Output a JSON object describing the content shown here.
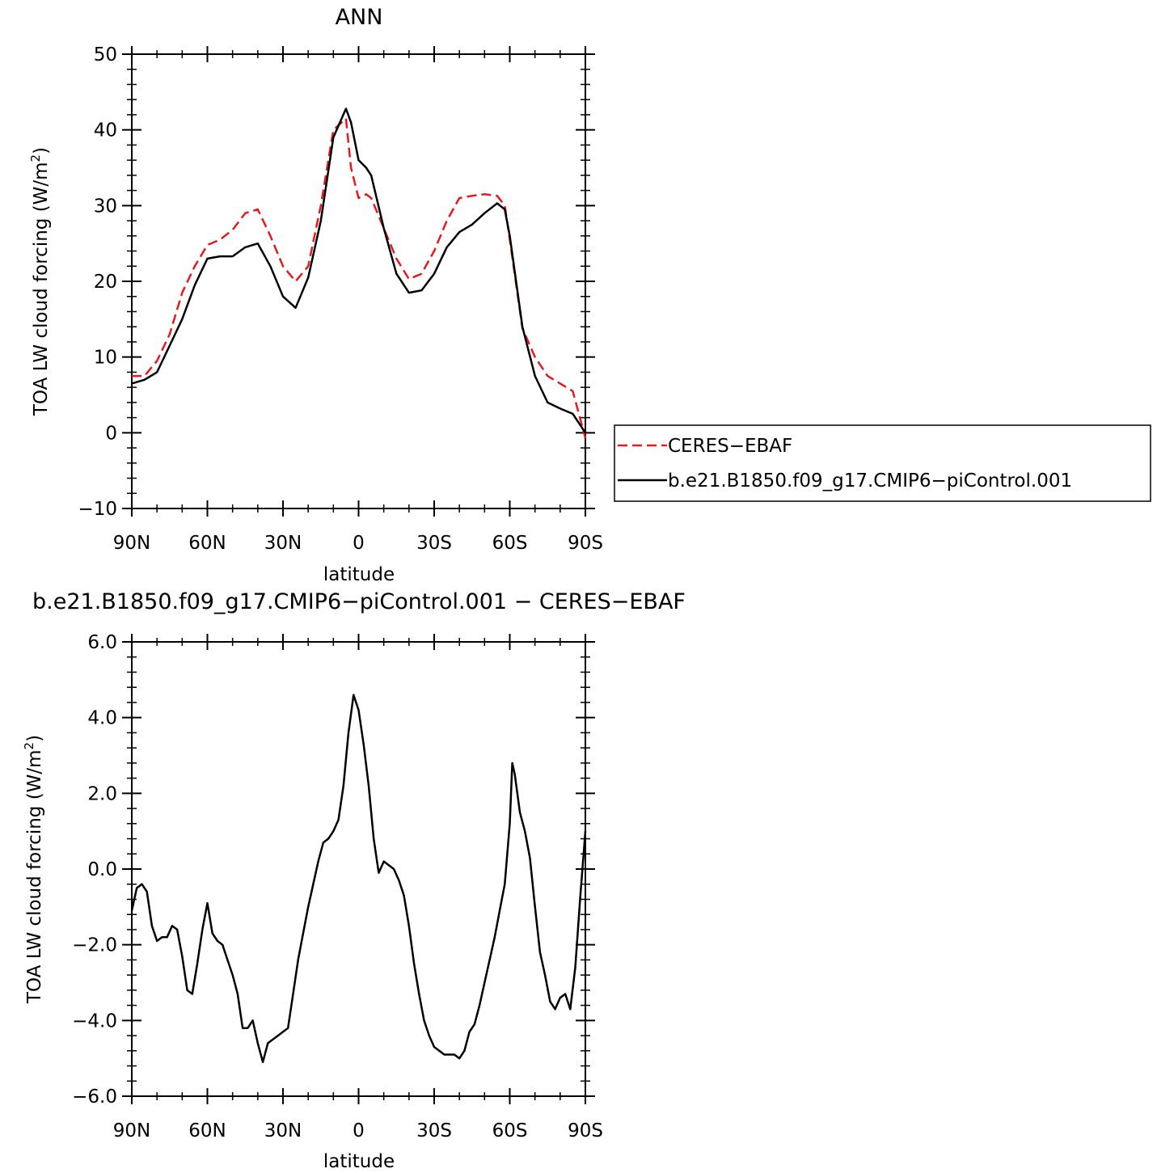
{
  "chart_data": [
    {
      "type": "line",
      "title": "ANN",
      "xlabel": "latitude",
      "ylabel_main": "TOA LW cloud forcing (W/m",
      "ylabel_sup": "2",
      "ylabel_close": ")",
      "xlim": [
        -90,
        90
      ],
      "ylim": [
        -10,
        50
      ],
      "x_ticks": [
        -90,
        -60,
        -30,
        0,
        30,
        60,
        90
      ],
      "x_tick_labels": [
        "90N",
        "60N",
        "30N",
        "0",
        "30S",
        "60S",
        "90S"
      ],
      "y_ticks": [
        -10,
        0,
        10,
        20,
        30,
        40,
        50
      ],
      "y_tick_labels": [
        "−10",
        "0",
        "10",
        "20",
        "30",
        "40",
        "50"
      ],
      "legend": {
        "placement": "right-outside"
      },
      "series": [
        {
          "name": "CERES−EBAF",
          "color": "#e41a1c",
          "dash": true,
          "x": [
            -90,
            -85,
            -80,
            -75,
            -70,
            -65,
            -60,
            -55,
            -50,
            -45,
            -40,
            -35,
            -30,
            -25,
            -20,
            -15,
            -10,
            -5,
            -3,
            0,
            3,
            5,
            10,
            15,
            20,
            25,
            30,
            35,
            40,
            45,
            50,
            55,
            58,
            60,
            65,
            70,
            75,
            80,
            85,
            90
          ],
          "y": [
            7.5,
            7.5,
            9.5,
            13,
            18.5,
            22,
            24.8,
            25.5,
            26.8,
            29,
            29.5,
            26,
            22,
            20,
            22,
            30,
            40,
            41.5,
            35,
            31,
            31.5,
            31,
            27,
            23,
            20.3,
            21,
            24,
            28,
            31,
            31.3,
            31.5,
            31.3,
            30,
            25.5,
            13.8,
            10,
            7.5,
            6.5,
            5.5,
            -0.7
          ]
        },
        {
          "name": "b.e21.B1850.f09_g17.CMIP6−piControl.001",
          "color": "#000000",
          "dash": false,
          "x": [
            -90,
            -85,
            -80,
            -75,
            -70,
            -65,
            -60,
            -55,
            -50,
            -45,
            -40,
            -35,
            -30,
            -25,
            -20,
            -15,
            -10,
            -5,
            -3,
            0,
            3,
            5,
            10,
            15,
            20,
            25,
            30,
            35,
            40,
            45,
            50,
            55,
            58,
            60,
            65,
            70,
            75,
            80,
            85,
            90
          ],
          "y": [
            6.5,
            7,
            8,
            11.5,
            15,
            19.5,
            23,
            23.3,
            23.3,
            24.5,
            25,
            22,
            18,
            16.5,
            20.5,
            28,
            39,
            42.8,
            41,
            36,
            35,
            34,
            27,
            21,
            18.5,
            18.8,
            21,
            24.5,
            26.5,
            27.5,
            29,
            30.3,
            29.5,
            26,
            14,
            7.5,
            4,
            3.2,
            2.5,
            0
          ]
        }
      ]
    },
    {
      "type": "line",
      "title": "b.e21.B1850.f09_g17.CMIP6−piControl.001 − CERES−EBAF",
      "xlabel": "latitude",
      "ylabel_main": "TOA LW cloud forcing (W/m",
      "ylabel_sup": "2",
      "ylabel_close": ")",
      "xlim": [
        -90,
        90
      ],
      "ylim": [
        -6,
        6
      ],
      "x_ticks": [
        -90,
        -60,
        -30,
        0,
        30,
        60,
        90
      ],
      "x_tick_labels": [
        "90N",
        "60N",
        "30N",
        "0",
        "30S",
        "60S",
        "90S"
      ],
      "y_ticks": [
        -6,
        -4,
        -2,
        0,
        2,
        4,
        6
      ],
      "y_tick_labels": [
        "−6.0",
        "−4.0",
        "−2.0",
        "0.0",
        "2.0",
        "4.0",
        "6.0"
      ],
      "series": [
        {
          "name": "",
          "color": "#000000",
          "dash": false,
          "x": [
            -90,
            -88,
            -86,
            -84,
            -82,
            -80,
            -78,
            -76,
            -74,
            -72,
            -70,
            -68,
            -66,
            -64,
            -62,
            -60,
            -58,
            -56,
            -54,
            -52,
            -50,
            -48,
            -46,
            -44,
            -42,
            -40,
            -38,
            -36,
            -34,
            -32,
            -30,
            -28,
            -26,
            -24,
            -22,
            -20,
            -18,
            -16,
            -14,
            -12,
            -10,
            -8,
            -6,
            -4,
            -2,
            0,
            2,
            4,
            6,
            8,
            10,
            12,
            14,
            16,
            18,
            20,
            22,
            24,
            26,
            28,
            30,
            32,
            34,
            36,
            38,
            40,
            42,
            44,
            46,
            48,
            50,
            52,
            54,
            56,
            58,
            60,
            61,
            62,
            64,
            66,
            68,
            70,
            72,
            74,
            76,
            78,
            80,
            82,
            84,
            86,
            88,
            90
          ],
          "y": [
            -1.1,
            -0.5,
            -0.4,
            -0.6,
            -1.5,
            -1.9,
            -1.8,
            -1.8,
            -1.5,
            -1.6,
            -2.3,
            -3.2,
            -3.3,
            -2.5,
            -1.6,
            -0.9,
            -1.7,
            -1.9,
            -2,
            -2.4,
            -2.8,
            -3.3,
            -4.2,
            -4.2,
            -4,
            -4.6,
            -5.1,
            -4.6,
            -4.5,
            -4.4,
            -4.3,
            -4.2,
            -3.3,
            -2.4,
            -1.7,
            -1,
            -0.4,
            0.2,
            0.7,
            0.8,
            1,
            1.3,
            2.2,
            3.6,
            4.6,
            4.2,
            3.3,
            2.2,
            0.8,
            -0.1,
            0.2,
            0.1,
            0,
            -0.3,
            -0.7,
            -1.5,
            -2.5,
            -3.3,
            -4,
            -4.4,
            -4.7,
            -4.8,
            -4.9,
            -4.9,
            -4.9,
            -5,
            -4.8,
            -4.3,
            -4.1,
            -3.6,
            -3,
            -2.4,
            -1.8,
            -1.1,
            -0.4,
            1.2,
            2.8,
            2.5,
            1.5,
            1,
            0.3,
            -1,
            -2.2,
            -2.8,
            -3.5,
            -3.7,
            -3.4,
            -3.3,
            -3.7,
            -2.6,
            -0.7,
            1
          ]
        }
      ]
    }
  ]
}
